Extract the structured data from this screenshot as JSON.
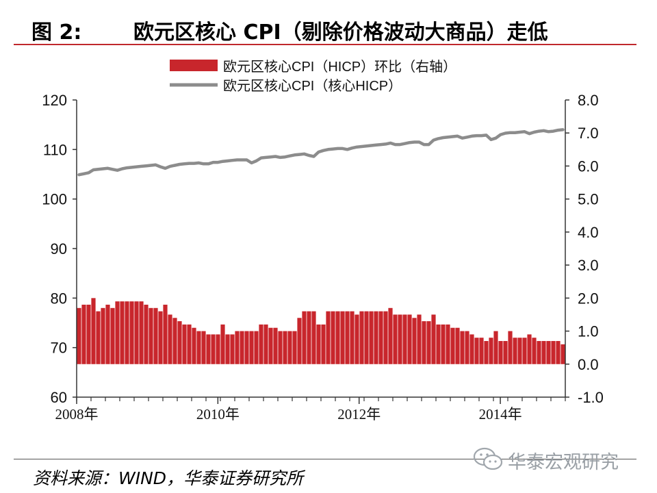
{
  "header": {
    "figure_label": "图 2:",
    "title": "欧元区核心 CPI（剔除价格波动大商品）走低"
  },
  "source_label": "资料来源：WIND，华泰证券研究所",
  "watermark_text": "华泰宏观研究",
  "watermark_icon": "wechat-icon",
  "chart_data": {
    "type": "bar+line",
    "legend": [
      {
        "name": "欧元区核心CPI（HICP）环比（右轴）",
        "kind": "bar",
        "color": "#c8262c"
      },
      {
        "name": "欧元区核心CPI（核心HICP）",
        "kind": "line",
        "color": "#8c8c8c"
      }
    ],
    "legend_placement": "top-center",
    "grid": false,
    "x_tick_labels": [
      "2008年",
      "2010年",
      "2012年",
      "2014年"
    ],
    "x_ticks": [
      2008,
      2010,
      2012,
      2014
    ],
    "x_range": [
      2008,
      2014.92
    ],
    "left_axis": {
      "range": [
        60,
        120
      ],
      "ticks": [
        "60",
        "70",
        "80",
        "90",
        "100",
        "110",
        "120"
      ]
    },
    "right_axis": {
      "range": [
        -1.0,
        8.0
      ],
      "ticks": [
        "-1.0",
        "0.0",
        "1.0",
        "2.0",
        "3.0",
        "4.0",
        "5.0",
        "6.0",
        "7.0",
        "8.0"
      ]
    },
    "series": [
      {
        "name": "欧元区核心CPI（HICP）环比（右轴）",
        "axis": "right",
        "start": 2008.0,
        "values": [
          1.7,
          1.8,
          1.8,
          2.0,
          1.6,
          1.7,
          1.8,
          1.7,
          1.9,
          1.9,
          1.9,
          1.9,
          1.9,
          1.9,
          1.8,
          1.7,
          1.7,
          1.6,
          1.8,
          1.5,
          1.4,
          1.3,
          1.2,
          1.2,
          1.1,
          1.0,
          1.0,
          0.9,
          0.9,
          0.9,
          1.2,
          0.9,
          0.9,
          1.0,
          1.0,
          1.0,
          1.0,
          1.0,
          1.2,
          1.2,
          1.1,
          1.1,
          1.0,
          1.0,
          1.0,
          1.0,
          1.4,
          1.6,
          1.6,
          1.6,
          1.2,
          1.2,
          1.6,
          1.6,
          1.6,
          1.6,
          1.6,
          1.6,
          1.5,
          1.6,
          1.6,
          1.6,
          1.6,
          1.6,
          1.6,
          1.7,
          1.5,
          1.5,
          1.5,
          1.5,
          1.4,
          1.5,
          1.3,
          1.3,
          1.5,
          1.2,
          1.2,
          1.2,
          1.1,
          1.1,
          1.0,
          1.0,
          0.9,
          0.8,
          0.8,
          0.7,
          0.8,
          1.0,
          0.7,
          0.7,
          1.0,
          0.8,
          0.8,
          0.8,
          0.9,
          0.8,
          0.7,
          0.7,
          0.7,
          0.7,
          0.7,
          0.6
        ]
      },
      {
        "name": "欧元区核心CPI（核心HICP）",
        "axis": "left",
        "start": 2008.0,
        "values": [
          104.9,
          105.1,
          105.3,
          105.9,
          106.0,
          106.1,
          106.2,
          106.0,
          105.8,
          106.1,
          106.3,
          106.4,
          106.5,
          106.6,
          106.7,
          106.8,
          106.9,
          106.5,
          106.2,
          106.6,
          106.8,
          107.0,
          107.1,
          107.2,
          107.2,
          107.3,
          107.1,
          107.1,
          107.4,
          107.4,
          107.6,
          107.7,
          107.8,
          107.9,
          107.9,
          107.9,
          107.3,
          107.7,
          108.3,
          108.4,
          108.5,
          108.6,
          108.4,
          108.5,
          108.7,
          108.9,
          109.0,
          109.1,
          108.8,
          108.6,
          109.5,
          109.8,
          110.0,
          110.1,
          110.2,
          110.2,
          110.0,
          110.3,
          110.5,
          110.6,
          110.7,
          110.8,
          110.9,
          111.0,
          111.1,
          111.3,
          111.0,
          111.0,
          111.2,
          111.4,
          111.5,
          111.5,
          111.0,
          111.0,
          111.9,
          112.2,
          112.4,
          112.5,
          112.6,
          112.7,
          112.3,
          112.5,
          112.7,
          112.8,
          112.8,
          112.9,
          112.0,
          112.3,
          113.0,
          113.3,
          113.4,
          113.4,
          113.5,
          113.6,
          113.2,
          113.5,
          113.7,
          113.8,
          113.6,
          113.7,
          113.9,
          114.0
        ]
      }
    ]
  }
}
